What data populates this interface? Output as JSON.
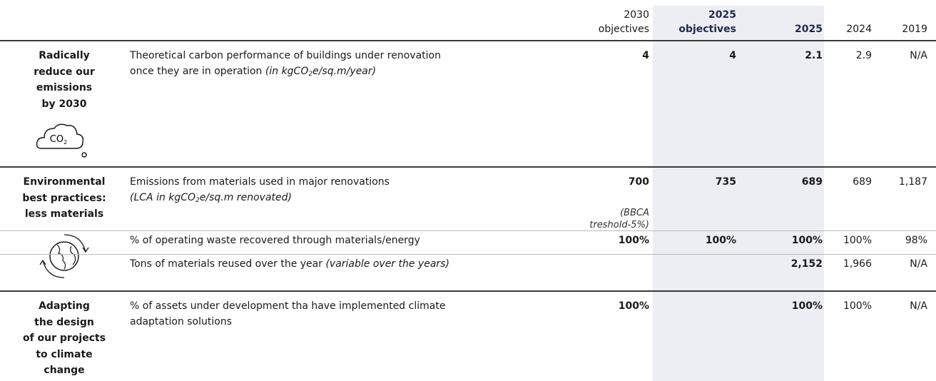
{
  "header": {
    "columns": [
      [
        "2030",
        "objectives"
      ],
      [
        "2025",
        "objectives"
      ],
      [
        "2025"
      ],
      [
        "2024"
      ],
      [
        "2019"
      ]
    ]
  },
  "sections": [
    {
      "title": [
        "Radically",
        "reduce our",
        "emissions",
        "by 2030"
      ],
      "icon_text": [
        "CO",
        "2"
      ],
      "rows": [
        {
          "label": [
            "Theoretical carbon performance of buildings under renovation",
            "once they are in operation"
          ],
          "note": [
            "(in kgCO",
            "2",
            "e/sq.m/year)"
          ],
          "values": [
            "4",
            "4",
            "2.1",
            "2.9",
            "N/A"
          ]
        }
      ]
    },
    {
      "title": [
        "Environmental",
        "best practices:",
        "less materials"
      ],
      "rows": [
        {
          "label": [
            "Emissions from materials used in major renovations"
          ],
          "note": [
            "(LCA in kgCO",
            "2",
            "e/sq.m renovated)"
          ],
          "values": [
            "700",
            "735",
            "689",
            "689",
            "1,187"
          ],
          "value_note": [
            "(BBCA",
            "treshold-5%)"
          ]
        },
        {
          "label": [
            "% of operating waste recovered through materials/energy"
          ],
          "values": [
            "100%",
            "100%",
            "100%",
            "100%",
            "98%"
          ]
        },
        {
          "label": [
            "Tons of materials reused over the year"
          ],
          "note": [
            "(variable over the years)"
          ],
          "values": [
            null,
            null,
            "2,152",
            "1,966",
            "N/A"
          ]
        }
      ]
    },
    {
      "title": [
        "Adapting",
        "the design",
        "of our projects",
        "to climate",
        "change"
      ],
      "rows": [
        {
          "label": [
            "% of assets under development tha have implemented climate",
            "adaptation solutions"
          ],
          "values": [
            "100%",
            null,
            "100%",
            "100%",
            "N/A"
          ]
        }
      ]
    }
  ]
}
